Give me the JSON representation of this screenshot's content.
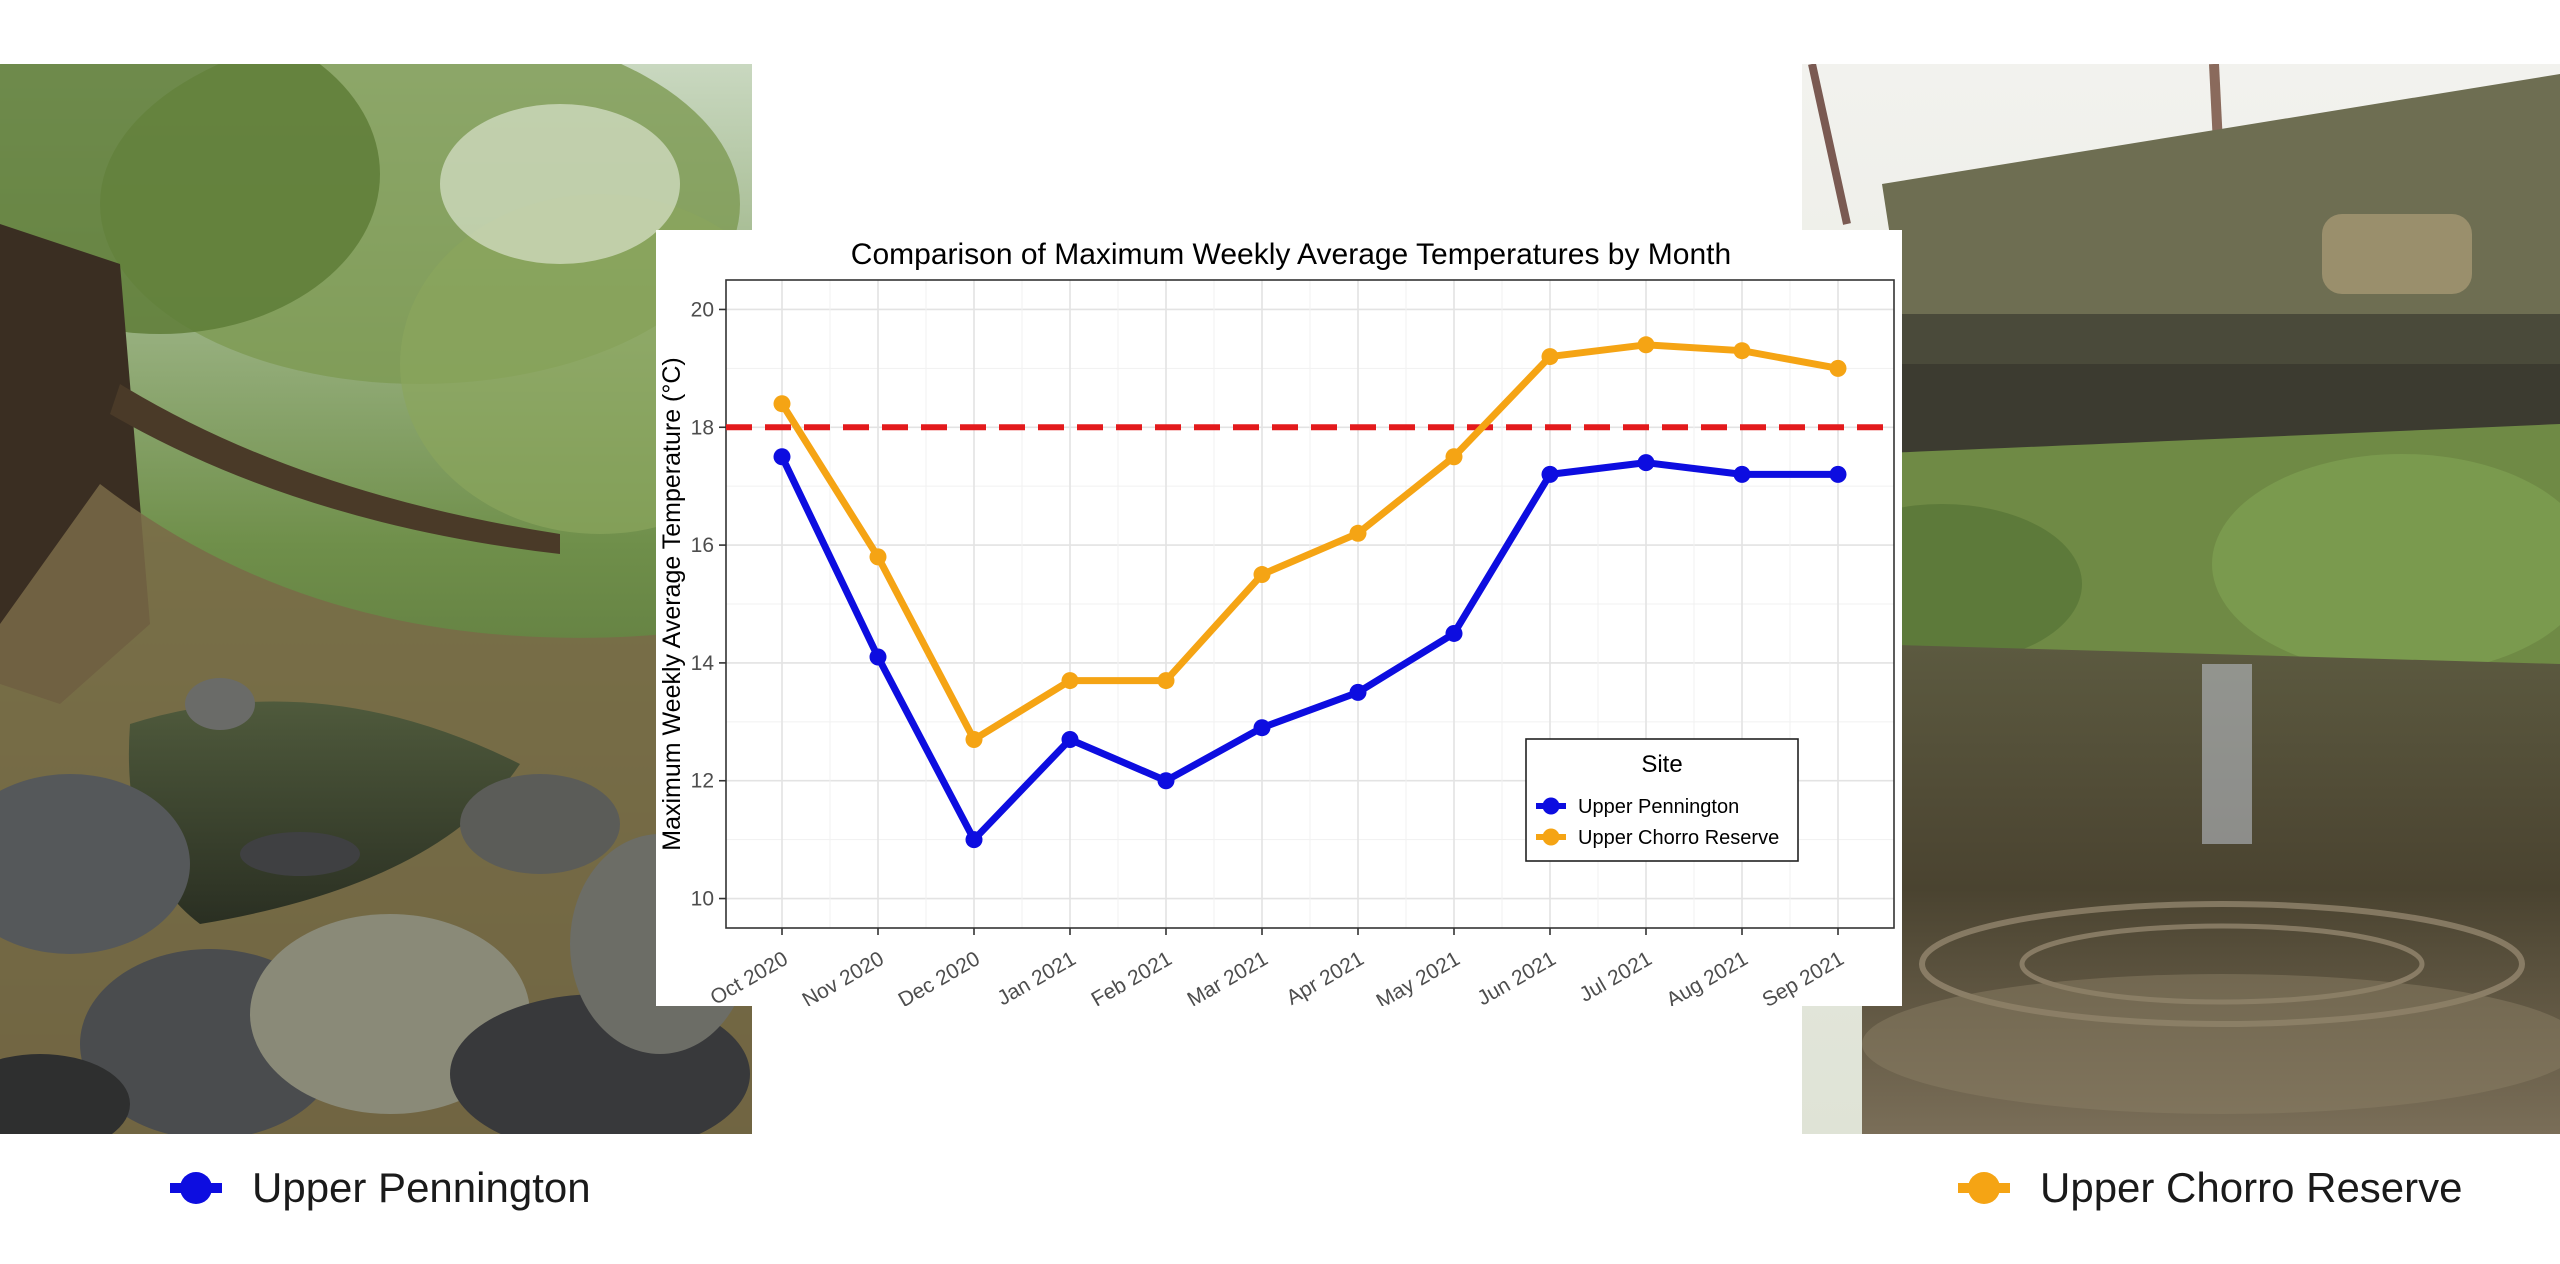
{
  "chart_data": {
    "type": "line",
    "title": "Comparison of Maximum Weekly Average Temperatures by Month",
    "xlabel": "",
    "ylabel": "Maximum Weekly Average Temperature (°C)",
    "categories": [
      "Oct 2020",
      "Nov 2020",
      "Dec 2020",
      "Jan 2021",
      "Feb 2021",
      "Mar 2021",
      "Apr 2021",
      "May 2021",
      "Jun 2021",
      "Jul 2021",
      "Aug 2021",
      "Sep 2021"
    ],
    "ylim": [
      9.5,
      20.5
    ],
    "yticks": [
      10,
      12,
      14,
      16,
      18,
      20
    ],
    "grid": true,
    "series": [
      {
        "name": "Upper Pennington",
        "color": "#0d0de0",
        "values": [
          17.5,
          14.1,
          11.0,
          12.7,
          12.0,
          12.9,
          13.5,
          14.5,
          17.2,
          17.4,
          17.2,
          17.2
        ]
      },
      {
        "name": "Upper Chorro Reserve",
        "color": "#f5a414",
        "values": [
          18.4,
          15.8,
          12.7,
          13.7,
          13.7,
          15.5,
          16.2,
          17.5,
          19.2,
          19.4,
          19.3,
          19.0
        ]
      }
    ],
    "threshold": {
      "value": 18,
      "color": "#e31a1c",
      "style": "dashed"
    },
    "legend": {
      "title": "Site",
      "placement": "bottom-right inside plot"
    }
  },
  "captions": {
    "left": {
      "label": "Upper Pennington",
      "color": "#0d0de0"
    },
    "right": {
      "label": "Upper Chorro Reserve",
      "color": "#f5a414"
    }
  },
  "photos": {
    "left": "creek-rocks-photo",
    "right": "bridge-creek-photo"
  }
}
